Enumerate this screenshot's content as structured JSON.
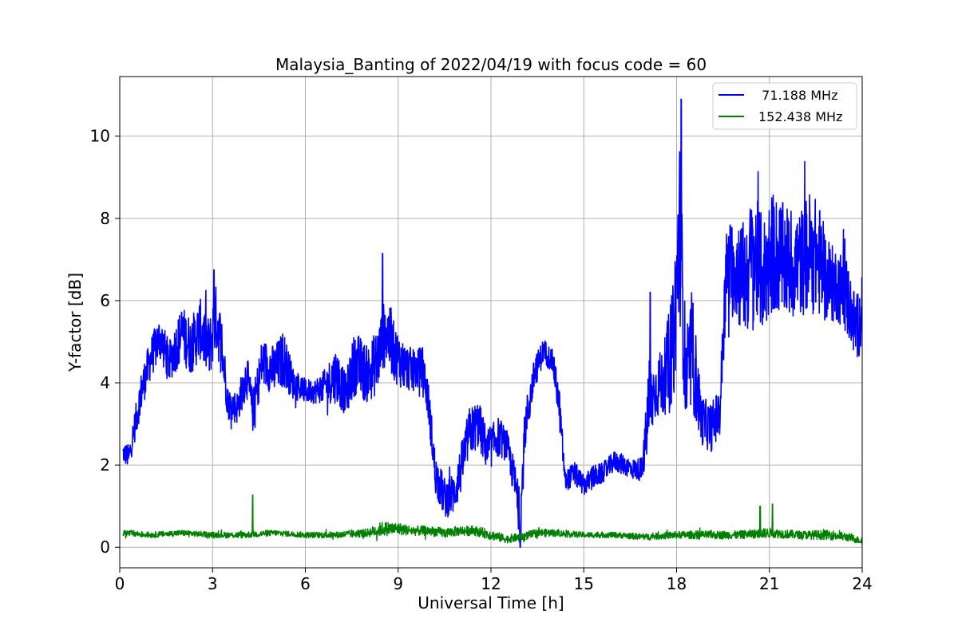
{
  "chart_data": {
    "type": "line",
    "title": "Malaysia_Banting of 2022/04/19 with focus code = 60",
    "xlabel": "Universal Time [h]",
    "ylabel": "Y-factor [dB]",
    "xlim": [
      0,
      24
    ],
    "ylim": [
      -0.5,
      11.45
    ],
    "xticks": [
      "0",
      "3",
      "6",
      "9",
      "12",
      "15",
      "18",
      "21",
      "24"
    ],
    "xtick_values": [
      0,
      3,
      6,
      9,
      12,
      15,
      18,
      21,
      24
    ],
    "yticks": [
      "0",
      "2",
      "4",
      "6",
      "8",
      "10"
    ],
    "ytick_values": [
      0,
      2,
      4,
      6,
      8,
      10
    ],
    "grid": true,
    "legend_position": "top-right",
    "series": [
      {
        "name": "  71.188 MHz",
        "color": "#0000ff",
        "x": [
          0.1,
          0.3,
          0.5,
          0.7,
          1.0,
          1.3,
          1.6,
          2.0,
          2.3,
          2.6,
          2.9,
          3.1,
          3.3,
          3.5,
          3.8,
          4.1,
          4.3,
          4.6,
          5.0,
          5.3,
          5.6,
          6.0,
          6.3,
          6.6,
          7.0,
          7.3,
          7.6,
          8.0,
          8.3,
          8.6,
          8.9,
          9.2,
          9.5,
          9.8,
          10.0,
          10.2,
          10.5,
          10.8,
          11.0,
          11.3,
          11.6,
          11.9,
          12.2,
          12.5,
          12.8,
          12.95,
          13.1,
          13.4,
          13.7,
          14.0,
          14.2,
          14.4,
          14.7,
          15.0,
          15.3,
          15.6,
          16.0,
          16.3,
          16.6,
          16.9,
          17.1,
          17.3,
          17.6,
          17.9,
          18.1,
          18.3,
          18.5,
          18.8,
          19.1,
          19.4,
          19.6,
          19.9,
          20.2,
          20.5,
          20.8,
          21.1,
          21.4,
          21.7,
          22.0,
          22.3,
          22.6,
          22.9,
          23.2,
          23.5,
          23.8,
          24.0
        ],
        "y": [
          2.3,
          2.2,
          3.0,
          3.8,
          4.6,
          5.1,
          4.5,
          5.2,
          4.9,
          5.3,
          4.8,
          5.6,
          4.9,
          3.5,
          3.4,
          4.2,
          3.3,
          4.5,
          4.3,
          4.6,
          4.0,
          3.8,
          3.8,
          3.9,
          4.2,
          3.7,
          4.5,
          4.2,
          4.5,
          5.3,
          4.7,
          4.4,
          4.3,
          4.4,
          3.4,
          1.8,
          1.2,
          1.3,
          1.8,
          2.8,
          3.0,
          2.3,
          2.7,
          2.5,
          1.5,
          0.6,
          2.9,
          4.2,
          4.8,
          4.5,
          3.5,
          1.6,
          1.8,
          1.5,
          1.7,
          1.8,
          2.1,
          2.0,
          1.9,
          1.9,
          3.4,
          3.8,
          4.1,
          5.0,
          7.8,
          4.0,
          4.8,
          3.1,
          2.9,
          3.3,
          6.7,
          6.9,
          6.5,
          7.1,
          6.6,
          7.2,
          7.0,
          6.9,
          6.9,
          7.2,
          7.0,
          6.4,
          6.4,
          6.1,
          5.3,
          5.7
        ],
        "amplitude": [
          0.25,
          0.3,
          0.4,
          0.5,
          0.5,
          0.55,
          0.5,
          0.7,
          0.7,
          0.75,
          0.75,
          0.8,
          0.75,
          0.4,
          0.4,
          0.55,
          0.5,
          0.6,
          0.6,
          0.7,
          0.4,
          0.3,
          0.3,
          0.4,
          0.7,
          0.5,
          0.8,
          0.7,
          0.8,
          0.85,
          0.7,
          0.6,
          0.5,
          0.5,
          0.5,
          0.5,
          0.5,
          0.5,
          0.6,
          0.6,
          0.6,
          0.5,
          0.5,
          0.4,
          0.5,
          0.6,
          0.6,
          0.4,
          0.3,
          0.3,
          0.5,
          0.25,
          0.3,
          0.25,
          0.3,
          0.25,
          0.25,
          0.25,
          0.25,
          0.3,
          1.1,
          0.7,
          0.9,
          1.5,
          2.2,
          1.2,
          1.5,
          0.6,
          0.6,
          0.6,
          1.0,
          1.4,
          1.4,
          1.6,
          1.4,
          1.5,
          1.4,
          1.4,
          1.3,
          1.5,
          1.4,
          1.0,
          0.9,
          1.0,
          0.8,
          0.9
        ]
      },
      {
        "name": "152.438 MHz",
        "color": "#008000",
        "x": [
          0.1,
          1.0,
          2.0,
          3.0,
          4.0,
          5.0,
          6.0,
          7.0,
          8.0,
          8.5,
          9.0,
          9.5,
          10.0,
          10.5,
          11.0,
          11.5,
          12.0,
          12.5,
          13.0,
          13.5,
          14.0,
          15.0,
          16.0,
          17.0,
          18.0,
          19.0,
          20.0,
          21.0,
          22.0,
          23.0,
          23.5,
          24.0
        ],
        "y": [
          0.35,
          0.3,
          0.35,
          0.3,
          0.3,
          0.35,
          0.3,
          0.3,
          0.35,
          0.45,
          0.45,
          0.4,
          0.4,
          0.35,
          0.4,
          0.4,
          0.3,
          0.2,
          0.25,
          0.35,
          0.35,
          0.3,
          0.3,
          0.25,
          0.3,
          0.3,
          0.3,
          0.35,
          0.3,
          0.3,
          0.25,
          0.15
        ],
        "amplitude": [
          0.08,
          0.07,
          0.07,
          0.07,
          0.08,
          0.07,
          0.07,
          0.08,
          0.1,
          0.18,
          0.15,
          0.12,
          0.12,
          0.12,
          0.12,
          0.12,
          0.12,
          0.1,
          0.1,
          0.1,
          0.09,
          0.07,
          0.07,
          0.08,
          0.09,
          0.1,
          0.1,
          0.12,
          0.1,
          0.12,
          0.1,
          0.08
        ]
      }
    ],
    "annotations": [
      {
        "series": 0,
        "x": 18.15,
        "y": 10.9
      },
      {
        "series": 0,
        "x": 17.15,
        "y": 6.2
      },
      {
        "series": 0,
        "x": 12.95,
        "y": 0.0
      },
      {
        "series": 0,
        "x": 8.5,
        "y": 7.15
      },
      {
        "series": 0,
        "x": 3.05,
        "y": 6.75
      },
      {
        "series": 1,
        "x": 4.3,
        "y": 1.27
      },
      {
        "series": 1,
        "x": 21.1,
        "y": 1.05
      },
      {
        "series": 1,
        "x": 20.7,
        "y": 1.0
      }
    ]
  }
}
